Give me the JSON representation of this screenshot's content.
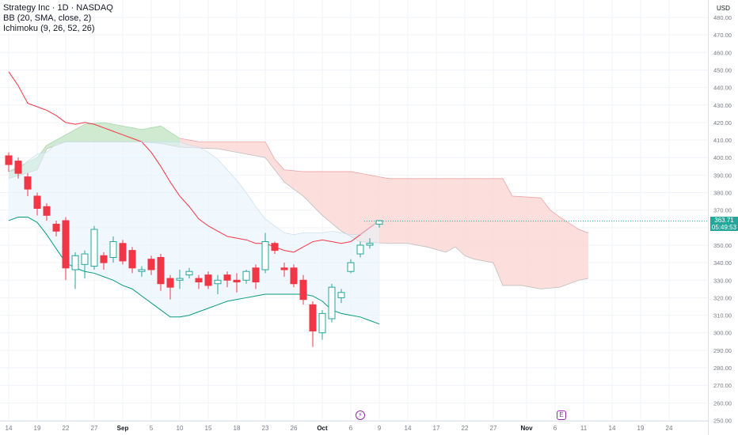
{
  "header": {
    "symbol": "Strategy Inc · 1D · NASDAQ",
    "indicator_bb": "BB (20, SMA, close, 2)",
    "indicator_ichimoku": "Ichimoku (9, 26, 52, 26)"
  },
  "axis": {
    "currency_label": "USD"
  },
  "price_tag": {
    "price": "363.71",
    "countdown": "05:49:53"
  },
  "events": {
    "dividend_icon": "lightning-icon",
    "earnings_label": "E"
  },
  "colors": {
    "up": "#26a69a",
    "down": "#f23645",
    "bb_basis": "#f23645",
    "bb_band": "#089981",
    "bb_fill": "#e3f2fd",
    "kumo_bull": "#c8e6c9",
    "kumo_bear": "#fcd9d6"
  },
  "chart_data": {
    "type": "candlestick",
    "title": "Strategy Inc · 1D · NASDAQ",
    "ylim": [
      250,
      480
    ],
    "y_ticks": [
      250,
      260,
      270,
      280,
      290,
      300,
      310,
      320,
      330,
      340,
      350,
      360,
      370,
      380,
      390,
      400,
      410,
      420,
      430,
      440,
      450,
      460,
      470,
      480
    ],
    "y_tick_labels": [
      "250.00",
      "260.00",
      "270.00",
      "280.00",
      "290.00",
      "300.00",
      "310.00",
      "320.00",
      "330.00",
      "340.00",
      "350.00",
      "360.00",
      "370.00",
      "380.00",
      "390.00",
      "400.00",
      "410.00",
      "420.00",
      "430.00",
      "440.00",
      "450.00",
      "460.00",
      "470.00",
      "480.00"
    ],
    "x_labels": [
      {
        "label": "14",
        "bar": 0
      },
      {
        "label": "19",
        "bar": 3
      },
      {
        "label": "22",
        "bar": 6
      },
      {
        "label": "27",
        "bar": 9
      },
      {
        "label": "Sep",
        "bar": 12
      },
      {
        "label": "5",
        "bar": 15
      },
      {
        "label": "10",
        "bar": 18
      },
      {
        "label": "15",
        "bar": 21
      },
      {
        "label": "18",
        "bar": 24
      },
      {
        "label": "23",
        "bar": 27
      },
      {
        "label": "26",
        "bar": 30
      },
      {
        "label": "Oct",
        "bar": 33
      },
      {
        "label": "6",
        "bar": 36
      },
      {
        "label": "9",
        "bar": 39
      },
      {
        "label": "14",
        "bar": 42
      },
      {
        "label": "17",
        "bar": 45
      },
      {
        "label": "22",
        "bar": 48
      },
      {
        "label": "27",
        "bar": 51
      },
      {
        "label": "Nov",
        "bar": 54.5
      },
      {
        "label": "6",
        "bar": 57.5
      },
      {
        "label": "11",
        "bar": 60.5
      },
      {
        "label": "14",
        "bar": 63.5
      },
      {
        "label": "19",
        "bar": 66.5
      },
      {
        "label": "24",
        "bar": 69.5
      }
    ],
    "candles": [
      {
        "o": 401,
        "h": 403,
        "c": 396,
        "l": 392
      },
      {
        "o": 398,
        "h": 400,
        "c": 391,
        "l": 388
      },
      {
        "o": 389,
        "h": 391,
        "c": 382,
        "l": 378
      },
      {
        "o": 378,
        "h": 380,
        "c": 371,
        "l": 367
      },
      {
        "o": 372,
        "h": 374,
        "c": 367,
        "l": 364
      },
      {
        "o": 362,
        "h": 364,
        "c": 358,
        "l": 355
      },
      {
        "o": 364,
        "h": 366,
        "c": 337,
        "l": 330
      },
      {
        "o": 336,
        "h": 346,
        "c": 344,
        "l": 325
      },
      {
        "o": 339,
        "h": 347,
        "c": 345,
        "l": 331
      },
      {
        "o": 338,
        "h": 361,
        "c": 359,
        "l": 336
      },
      {
        "o": 344,
        "h": 346,
        "c": 340,
        "l": 336
      },
      {
        "o": 343,
        "h": 355,
        "c": 352,
        "l": 340
      },
      {
        "o": 351,
        "h": 353,
        "c": 341,
        "l": 339
      },
      {
        "o": 347,
        "h": 349,
        "c": 337,
        "l": 334
      },
      {
        "o": 335,
        "h": 338,
        "c": 336,
        "l": 332
      },
      {
        "o": 342,
        "h": 344,
        "c": 336,
        "l": 333
      },
      {
        "o": 343,
        "h": 345,
        "c": 328,
        "l": 324
      },
      {
        "o": 331,
        "h": 333,
        "c": 326,
        "l": 319
      },
      {
        "o": 330,
        "h": 336,
        "c": 331,
        "l": 325
      },
      {
        "o": 333,
        "h": 337,
        "c": 335,
        "l": 331
      },
      {
        "o": 331,
        "h": 333,
        "c": 329,
        "l": 325
      },
      {
        "o": 333,
        "h": 335,
        "c": 327,
        "l": 325
      },
      {
        "o": 328,
        "h": 333,
        "c": 330,
        "l": 322
      },
      {
        "o": 333,
        "h": 335,
        "c": 330,
        "l": 326
      },
      {
        "o": 330,
        "h": 334,
        "c": 329,
        "l": 323
      },
      {
        "o": 330,
        "h": 336,
        "c": 335,
        "l": 328
      },
      {
        "o": 337,
        "h": 339,
        "c": 329,
        "l": 325
      },
      {
        "o": 336,
        "h": 357,
        "c": 352,
        "l": 334
      },
      {
        "o": 351,
        "h": 352,
        "c": 347,
        "l": 345
      },
      {
        "o": 337,
        "h": 340,
        "c": 336,
        "l": 332
      },
      {
        "o": 337,
        "h": 339,
        "c": 328,
        "l": 326
      },
      {
        "o": 330,
        "h": 333,
        "c": 319,
        "l": 316
      },
      {
        "o": 316,
        "h": 318,
        "c": 301,
        "l": 292
      },
      {
        "o": 300,
        "h": 313,
        "c": 311,
        "l": 296
      },
      {
        "o": 308,
        "h": 328,
        "c": 326,
        "l": 306
      },
      {
        "o": 320,
        "h": 325,
        "c": 323,
        "l": 317
      },
      {
        "o": 335,
        "h": 342,
        "c": 340,
        "l": 334
      },
      {
        "o": 345,
        "h": 352,
        "c": 350,
        "l": 343
      },
      {
        "o": 350,
        "h": 354,
        "c": 351,
        "l": 348
      },
      {
        "o": 362,
        "h": 364,
        "c": 364,
        "l": 360
      }
    ],
    "bb_basis": [
      [
        0,
        449
      ],
      [
        1,
        441
      ],
      [
        2,
        431
      ],
      [
        3,
        429
      ],
      [
        4,
        427
      ],
      [
        5,
        424
      ],
      [
        6,
        420
      ],
      [
        7,
        419
      ],
      [
        8,
        420
      ],
      [
        9,
        419
      ],
      [
        10,
        417
      ],
      [
        11,
        415
      ],
      [
        12,
        413
      ],
      [
        13,
        411
      ],
      [
        14,
        409
      ],
      [
        15,
        403
      ],
      [
        16,
        395
      ],
      [
        17,
        386
      ],
      [
        18,
        378
      ],
      [
        19,
        372
      ],
      [
        20,
        365
      ],
      [
        21,
        361
      ],
      [
        22,
        358
      ],
      [
        23,
        355
      ],
      [
        24,
        354
      ],
      [
        25,
        353
      ],
      [
        26,
        351
      ],
      [
        27,
        351
      ],
      [
        28,
        349
      ],
      [
        29,
        347
      ],
      [
        30,
        346
      ],
      [
        31,
        349
      ],
      [
        32,
        352
      ],
      [
        33,
        353
      ],
      [
        34,
        352
      ],
      [
        35,
        351
      ],
      [
        36,
        352
      ],
      [
        37,
        356
      ],
      [
        38,
        360
      ],
      [
        39,
        364
      ]
    ],
    "bb_upper": [
      [
        0,
        392
      ],
      [
        1,
        393
      ],
      [
        2,
        398
      ],
      [
        3,
        402
      ],
      [
        4,
        403
      ],
      [
        5,
        408
      ],
      [
        6,
        409
      ],
      [
        7,
        409
      ],
      [
        8,
        409
      ],
      [
        9,
        409
      ],
      [
        10,
        409
      ],
      [
        11,
        409
      ],
      [
        12,
        409
      ],
      [
        13,
        409
      ],
      [
        14,
        409
      ],
      [
        15,
        409
      ],
      [
        16,
        409
      ],
      [
        17,
        409
      ],
      [
        18,
        409
      ],
      [
        19,
        407
      ],
      [
        20,
        406
      ],
      [
        21,
        403
      ],
      [
        22,
        399
      ],
      [
        23,
        393
      ],
      [
        24,
        387
      ],
      [
        25,
        380
      ],
      [
        26,
        372
      ],
      [
        27,
        365
      ],
      [
        28,
        361
      ],
      [
        29,
        357
      ],
      [
        30,
        356
      ],
      [
        31,
        357
      ],
      [
        32,
        357
      ],
      [
        33,
        357
      ],
      [
        34,
        358
      ],
      [
        35,
        357
      ],
      [
        36,
        356
      ],
      [
        37,
        356
      ],
      [
        38,
        360
      ],
      [
        39,
        364
      ]
    ],
    "bb_lower": [
      [
        0,
        364
      ],
      [
        1,
        366
      ],
      [
        2,
        366
      ],
      [
        3,
        363
      ],
      [
        4,
        356
      ],
      [
        5,
        348
      ],
      [
        6,
        340
      ],
      [
        7,
        337
      ],
      [
        8,
        335
      ],
      [
        9,
        334
      ],
      [
        10,
        332
      ],
      [
        11,
        330
      ],
      [
        12,
        327
      ],
      [
        13,
        325
      ],
      [
        14,
        321
      ],
      [
        15,
        317
      ],
      [
        16,
        313
      ],
      [
        17,
        309
      ],
      [
        18,
        309
      ],
      [
        19,
        310
      ],
      [
        20,
        312
      ],
      [
        21,
        314
      ],
      [
        22,
        316
      ],
      [
        23,
        318
      ],
      [
        24,
        319
      ],
      [
        25,
        320
      ],
      [
        26,
        321
      ],
      [
        27,
        322
      ],
      [
        28,
        322
      ],
      [
        29,
        322
      ],
      [
        30,
        322
      ],
      [
        31,
        322
      ],
      [
        32,
        321
      ],
      [
        33,
        318
      ],
      [
        34,
        313
      ],
      [
        35,
        311
      ],
      [
        36,
        310
      ],
      [
        37,
        309
      ],
      [
        38,
        307
      ],
      [
        39,
        305
      ]
    ],
    "kumo_top": [
      [
        0,
        392
      ],
      [
        3,
        400
      ],
      [
        4,
        407
      ],
      [
        6,
        413
      ],
      [
        8,
        419
      ],
      [
        10,
        420
      ],
      [
        12,
        418
      ],
      [
        14,
        416
      ],
      [
        16,
        418
      ],
      [
        18,
        411
      ],
      [
        20,
        409
      ],
      [
        24,
        409
      ],
      [
        27,
        409
      ],
      [
        28,
        399
      ],
      [
        29,
        393
      ],
      [
        31,
        392
      ],
      [
        36,
        392
      ],
      [
        38,
        390
      ],
      [
        40,
        388
      ],
      [
        45,
        388
      ],
      [
        50,
        388
      ],
      [
        52,
        388
      ],
      [
        53,
        378
      ],
      [
        56,
        377
      ],
      [
        57,
        370
      ],
      [
        58,
        366
      ],
      [
        60,
        359
      ],
      [
        61,
        357
      ]
    ],
    "kumo_bottom": [
      [
        0,
        388
      ],
      [
        3,
        393
      ],
      [
        4,
        405
      ],
      [
        6,
        409
      ],
      [
        10,
        409
      ],
      [
        14,
        409
      ],
      [
        16,
        408
      ],
      [
        18,
        406
      ],
      [
        22,
        405
      ],
      [
        25,
        402
      ],
      [
        27,
        400
      ],
      [
        28,
        393
      ],
      [
        29,
        386
      ],
      [
        31,
        378
      ],
      [
        33,
        367
      ],
      [
        35,
        358
      ],
      [
        37,
        352
      ],
      [
        40,
        351
      ],
      [
        42,
        351
      ],
      [
        44,
        349
      ],
      [
        46,
        346
      ],
      [
        47,
        349
      ],
      [
        48,
        344
      ],
      [
        49,
        342
      ],
      [
        51,
        340
      ],
      [
        52,
        327
      ],
      [
        54,
        327
      ],
      [
        56,
        325
      ],
      [
        58,
        326
      ],
      [
        60,
        330
      ],
      [
        61,
        331
      ]
    ],
    "kumo_bull_segments": [
      [
        0,
        18
      ]
    ],
    "kumo_bear_segments": [
      [
        18,
        61
      ]
    ]
  }
}
